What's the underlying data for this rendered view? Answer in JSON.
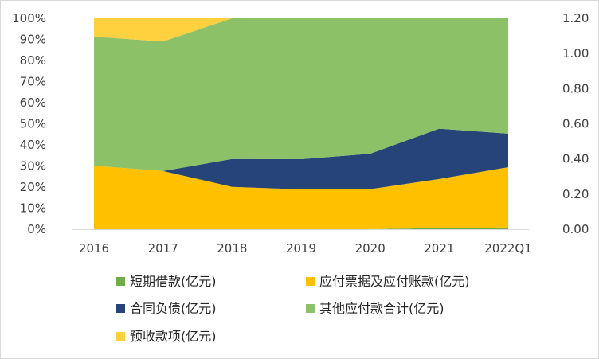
{
  "chart_data": {
    "type": "area",
    "stacking": "percent",
    "categories": [
      "2016",
      "2017",
      "2018",
      "2019",
      "2020",
      "2021",
      "2022Q1"
    ],
    "y_left": {
      "ylim": [
        0,
        100
      ],
      "ticks": [
        "0%",
        "10%",
        "20%",
        "30%",
        "40%",
        "50%",
        "60%",
        "70%",
        "80%",
        "90%",
        "100%"
      ]
    },
    "y_right": {
      "ylim": [
        0,
        1.2
      ],
      "ticks": [
        "0.00",
        "0.20",
        "0.40",
        "0.60",
        "0.80",
        "1.00",
        "1.20"
      ]
    },
    "series": [
      {
        "name": "短期借款(亿元)",
        "color": "#70AD47",
        "values": [
          0,
          0,
          0,
          0,
          0,
          0.6,
          0.8
        ]
      },
      {
        "name": "应付票据及应付账款(亿元)",
        "color": "#FFC000",
        "values": [
          30.1,
          27.6,
          20.1,
          18.9,
          19.0,
          23.2,
          28.6
        ]
      },
      {
        "name": "合同负债(亿元)",
        "color": "#264478",
        "values": [
          0,
          0,
          13.2,
          14.3,
          16.8,
          23.9,
          15.9
        ]
      },
      {
        "name": "其他应付款合计(亿元)",
        "color": "#8CC168",
        "values": [
          61.2,
          61.4,
          66.7,
          66.8,
          64.2,
          52.3,
          54.7
        ]
      },
      {
        "name": "预收款项(亿元)",
        "color": "#FFD13F",
        "values": [
          8.7,
          11.0,
          0,
          0,
          0,
          0,
          0
        ]
      }
    ],
    "legend_position": "bottom",
    "grid": false
  }
}
